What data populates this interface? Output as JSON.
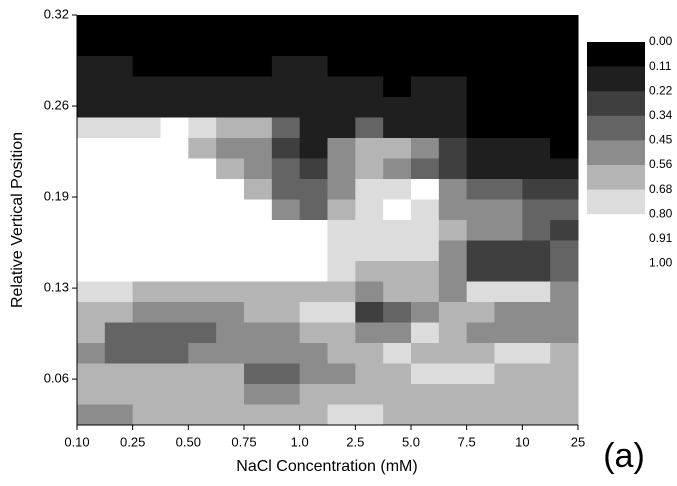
{
  "chart_data": {
    "type": "heatmap",
    "x_label": "NaCl Concentration (mM)",
    "y_label": "Relative Vertical Position",
    "annotation": "(a)",
    "categories": [
      "0.10",
      "0.25",
      "0.50",
      "0.75",
      "1.0",
      "2.5",
      "5.0",
      "7.5",
      "10",
      "25"
    ],
    "ylim": [
      0.032,
      0.3225
    ],
    "yticks": [
      {
        "value": 0.3225,
        "label": "0.32"
      },
      {
        "value": 0.258,
        "label": "0.26"
      },
      {
        "value": 0.1935,
        "label": "0.19"
      },
      {
        "value": 0.129,
        "label": "0.13"
      },
      {
        "value": 0.0645,
        "label": "0.06"
      }
    ],
    "levels": [
      {
        "value": 0,
        "label": "0.00"
      },
      0.11,
      0.22,
      0.34,
      0.45,
      0.56,
      0.68,
      {
        "value": 0.8,
        "label": "0.80"
      },
      0.91,
      {
        "value": 1,
        "label": "1.00"
      }
    ],
    "colors": [
      "#000000",
      "#1f1f1f",
      "#3f3f3f",
      "#646464",
      "#8c8c8c",
      "#b4b4b4",
      "#dcdcdc",
      "#ffffff",
      "#ffffff"
    ],
    "z": [
      [
        0.05,
        0.05,
        0.05,
        0.05,
        0.05,
        0.05,
        0.05,
        0.05,
        0.05,
        0.05,
        0.05,
        0.05,
        0.05,
        0.05,
        0.05,
        0.05,
        0.05,
        0.05
      ],
      [
        0.05,
        0.05,
        0.05,
        0.05,
        0.05,
        0.05,
        0.05,
        0.05,
        0.05,
        0.05,
        0.05,
        0.05,
        0.05,
        0.05,
        0.05,
        0.05,
        0.05,
        0.05
      ],
      [
        0.15,
        0.15,
        0.05,
        0.05,
        0.05,
        0.05,
        0.05,
        0.15,
        0.15,
        0.05,
        0.05,
        0.05,
        0.05,
        0.05,
        0.05,
        0.05,
        0.05,
        0.05
      ],
      [
        0.15,
        0.15,
        0.15,
        0.15,
        0.15,
        0.15,
        0.15,
        0.15,
        0.15,
        0.15,
        0.15,
        0.05,
        0.15,
        0.15,
        0.05,
        0.05,
        0.05,
        0.05
      ],
      [
        0.15,
        0.15,
        0.15,
        0.15,
        0.15,
        0.15,
        0.15,
        0.15,
        0.15,
        0.15,
        0.15,
        0.15,
        0.15,
        0.15,
        0.05,
        0.05,
        0.05,
        0.05
      ],
      [
        0.75,
        0.75,
        0.75,
        0.85,
        0.75,
        0.6,
        0.6,
        0.4,
        0.15,
        0.15,
        0.4,
        0.15,
        0.15,
        0.15,
        0.05,
        0.05,
        0.05,
        0.05
      ],
      [
        0.9,
        0.9,
        0.9,
        0.9,
        0.6,
        0.5,
        0.5,
        0.3,
        0.15,
        0.5,
        0.6,
        0.6,
        0.5,
        0.3,
        0.15,
        0.15,
        0.15,
        0.05
      ],
      [
        0.9,
        0.9,
        0.9,
        0.9,
        0.9,
        0.6,
        0.5,
        0.4,
        0.3,
        0.5,
        0.6,
        0.5,
        0.4,
        0.3,
        0.15,
        0.15,
        0.15,
        0.15
      ],
      [
        0.9,
        0.9,
        0.9,
        0.9,
        0.9,
        0.9,
        0.6,
        0.4,
        0.4,
        0.5,
        0.75,
        0.75,
        0.85,
        0.5,
        0.4,
        0.4,
        0.3,
        0.3
      ],
      [
        0.9,
        0.9,
        0.9,
        0.9,
        0.9,
        0.9,
        0.9,
        0.5,
        0.4,
        0.6,
        0.75,
        0.85,
        0.75,
        0.5,
        0.5,
        0.5,
        0.4,
        0.4
      ],
      [
        0.9,
        0.9,
        0.9,
        0.9,
        0.9,
        0.9,
        0.9,
        0.9,
        0.9,
        0.75,
        0.75,
        0.75,
        0.75,
        0.6,
        0.5,
        0.5,
        0.4,
        0.3
      ],
      [
        0.9,
        0.9,
        0.9,
        0.9,
        0.9,
        0.9,
        0.9,
        0.9,
        0.9,
        0.75,
        0.75,
        0.75,
        0.75,
        0.5,
        0.3,
        0.3,
        0.3,
        0.4
      ],
      [
        0.9,
        0.9,
        0.9,
        0.9,
        0.9,
        0.9,
        0.9,
        0.9,
        0.9,
        0.75,
        0.6,
        0.6,
        0.6,
        0.5,
        0.3,
        0.3,
        0.3,
        0.4
      ],
      [
        0.75,
        0.75,
        0.6,
        0.6,
        0.6,
        0.6,
        0.6,
        0.6,
        0.6,
        0.6,
        0.5,
        0.6,
        0.6,
        0.5,
        0.75,
        0.75,
        0.75,
        0.5
      ],
      [
        0.6,
        0.6,
        0.5,
        0.5,
        0.5,
        0.5,
        0.6,
        0.6,
        0.75,
        0.75,
        0.3,
        0.4,
        0.5,
        0.6,
        0.6,
        0.5,
        0.5,
        0.5
      ],
      [
        0.6,
        0.4,
        0.4,
        0.4,
        0.4,
        0.5,
        0.5,
        0.5,
        0.6,
        0.6,
        0.5,
        0.5,
        0.75,
        0.6,
        0.5,
        0.5,
        0.5,
        0.5
      ],
      [
        0.5,
        0.4,
        0.4,
        0.4,
        0.5,
        0.5,
        0.5,
        0.5,
        0.5,
        0.6,
        0.6,
        0.75,
        0.6,
        0.6,
        0.6,
        0.75,
        0.75,
        0.6
      ],
      [
        0.6,
        0.6,
        0.6,
        0.6,
        0.6,
        0.6,
        0.4,
        0.4,
        0.5,
        0.5,
        0.6,
        0.6,
        0.75,
        0.75,
        0.75,
        0.6,
        0.6,
        0.6
      ],
      [
        0.6,
        0.6,
        0.6,
        0.6,
        0.6,
        0.6,
        0.5,
        0.5,
        0.6,
        0.6,
        0.6,
        0.6,
        0.6,
        0.6,
        0.6,
        0.6,
        0.6,
        0.6
      ],
      [
        0.5,
        0.5,
        0.6,
        0.6,
        0.6,
        0.6,
        0.6,
        0.6,
        0.6,
        0.75,
        0.75,
        0.6,
        0.6,
        0.6,
        0.6,
        0.6,
        0.6,
        0.6
      ]
    ]
  }
}
